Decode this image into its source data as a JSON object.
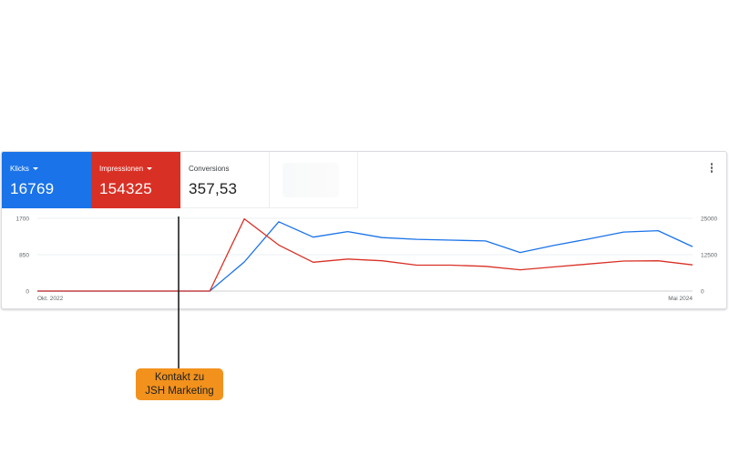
{
  "metrics": [
    {
      "label": "Klicks",
      "value": "16769",
      "color": "#1a73e8"
    },
    {
      "label": "Impressionen",
      "value": "154325",
      "color": "#d93025"
    },
    {
      "label": "Conversions",
      "value": "357,53"
    }
  ],
  "more_menu_icon": "more-vert-icon",
  "annotation": {
    "line1": "Kontakt zu",
    "line2": "JSH Marketing"
  },
  "chart_data": {
    "type": "line",
    "x_labels": {
      "start": "Okt. 2022",
      "end": "Mai 2024"
    },
    "y_left": {
      "ticks": [
        "1700",
        "850",
        "0"
      ],
      "ylim": [
        0,
        1700
      ]
    },
    "y_right": {
      "ticks": [
        "25000",
        "12500",
        "0"
      ],
      "ylim": [
        0,
        25000
      ]
    },
    "grid": true,
    "series": [
      {
        "name": "Klicks",
        "axis": "left",
        "color": "#1a73e8",
        "values": [
          0,
          0,
          0,
          0,
          0,
          0,
          680,
          1620,
          1260,
          1390,
          1250,
          1210,
          1190,
          1170,
          900,
          1070,
          1220,
          1380,
          1410,
          1040
        ]
      },
      {
        "name": "Impressionen",
        "axis": "right",
        "color": "#d93025",
        "values": [
          0,
          0,
          0,
          0,
          0,
          0,
          24800,
          15800,
          9900,
          11000,
          10400,
          8900,
          8900,
          8500,
          7300,
          8300,
          9300,
          10300,
          10400,
          9000
        ]
      }
    ]
  }
}
